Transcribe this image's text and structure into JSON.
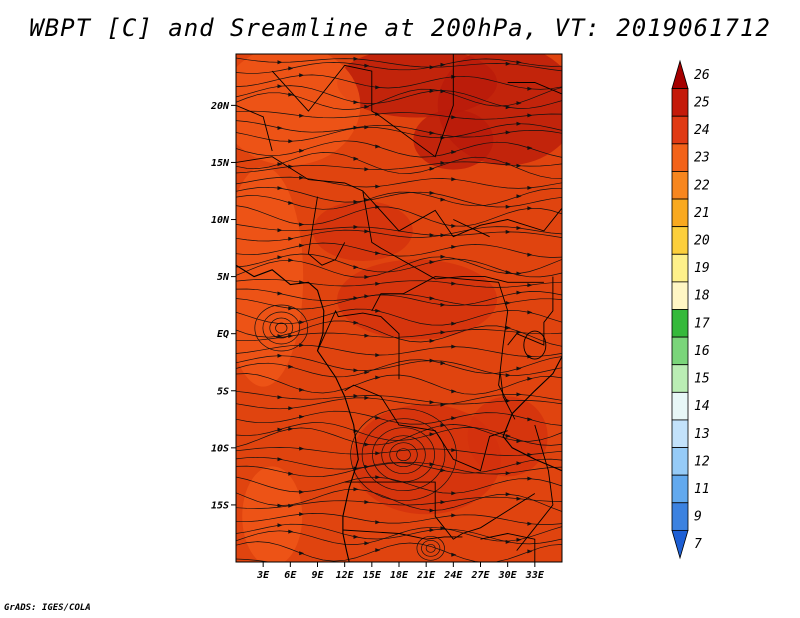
{
  "title": "WBPT [C] and Sreamline at 200hPa, VT: 2019061712",
  "credit": "GrADS: IGES/COLA",
  "map": {
    "lon_range": [
      0,
      36
    ],
    "lat_range": [
      -20,
      24.5
    ],
    "lat_ticks": [
      {
        "value": 20,
        "label": "20N"
      },
      {
        "value": 15,
        "label": "15N"
      },
      {
        "value": 10,
        "label": "10N"
      },
      {
        "value": 5,
        "label": "5N"
      },
      {
        "value": 0,
        "label": "EQ"
      },
      {
        "value": -5,
        "label": "5S"
      },
      {
        "value": -10,
        "label": "10S"
      },
      {
        "value": -15,
        "label": "15S"
      }
    ],
    "lon_ticks": [
      {
        "value": 3,
        "label": "3E"
      },
      {
        "value": 6,
        "label": "6E"
      },
      {
        "value": 9,
        "label": "9E"
      },
      {
        "value": 12,
        "label": "12E"
      },
      {
        "value": 15,
        "label": "15E"
      },
      {
        "value": 18,
        "label": "18E"
      },
      {
        "value": 21,
        "label": "21E"
      },
      {
        "value": 24,
        "label": "24E"
      },
      {
        "value": 27,
        "label": "27E"
      },
      {
        "value": 30,
        "label": "30E"
      },
      {
        "value": 33,
        "label": "33E"
      }
    ],
    "field_colors": {
      "base": "#e0440f",
      "level_23": "#f2581a",
      "level_24": "#d3300d",
      "level_25": "#b81a0b"
    }
  },
  "colorbar": {
    "levels": [
      "26",
      "25",
      "24",
      "23",
      "22",
      "21",
      "20",
      "19",
      "18",
      "17",
      "16",
      "15",
      "14",
      "13",
      "12",
      "11",
      "9",
      "7"
    ],
    "colors": [
      "#a50000",
      "#c41a0a",
      "#e03a14",
      "#f26219",
      "#f7861e",
      "#f9a91f",
      "#fccf3c",
      "#fef08a",
      "#fff6c4",
      "#35b93b",
      "#7ad57a",
      "#baedb4",
      "#e8f7f7",
      "#c3e2fb",
      "#96cbf7",
      "#62a9ee",
      "#3c82e0",
      "#1d5fd4"
    ]
  }
}
